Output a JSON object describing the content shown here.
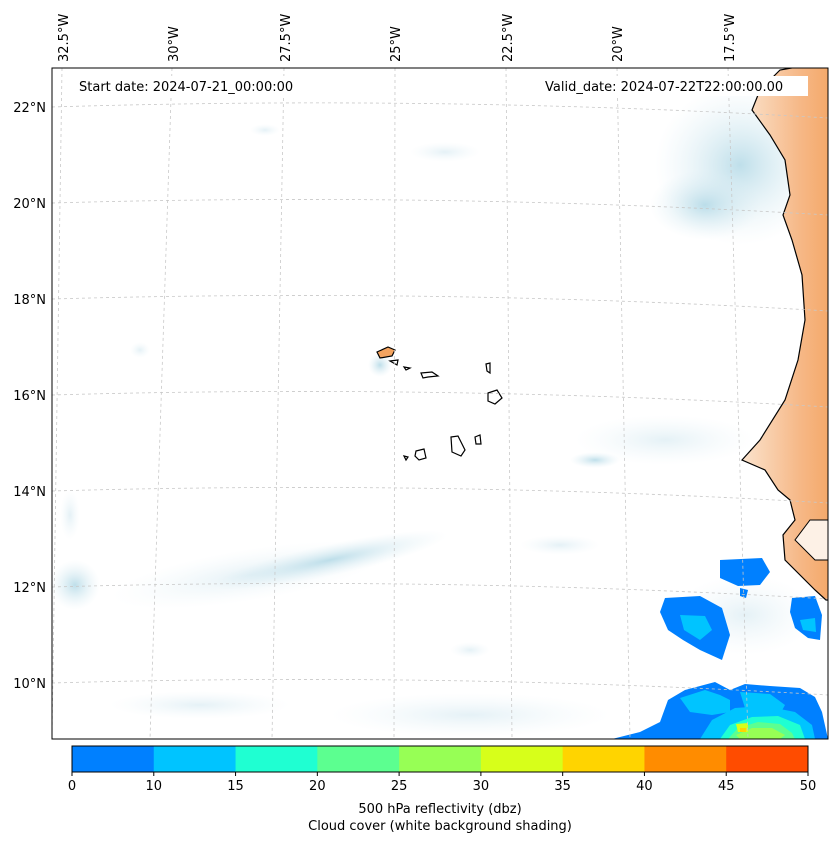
{
  "map": {
    "start_date": "Start date: 2024-07-21_00:00:00",
    "valid_date": "Valid_date: 2024-07-22T22:00:00.00",
    "lon_labels": [
      "32.5°W",
      "30°W",
      "27.5°W",
      "25°W",
      "22.5°W",
      "20°W",
      "17.5°W"
    ],
    "lat_labels": [
      "22°N",
      "20°N",
      "18°N",
      "16°N",
      "14°N",
      "12°N",
      "10°N"
    ],
    "land_color": "#f4a460",
    "coast_color": "#000000",
    "gridline_color": "#c8c8c8"
  },
  "colorbar": {
    "ticks": [
      "0",
      "10",
      "15",
      "20",
      "25",
      "30",
      "35",
      "40",
      "45",
      "50"
    ],
    "colors": [
      "#0080ff",
      "#00c4ff",
      "#1fffd2",
      "#5cff90",
      "#97ff55",
      "#d7ff1a",
      "#ffd400",
      "#ff8c00",
      "#ff4c00"
    ],
    "label_line1": "500 hPa reflectivity (dbz)",
    "label_line2": "Cloud cover (white background shading)"
  }
}
